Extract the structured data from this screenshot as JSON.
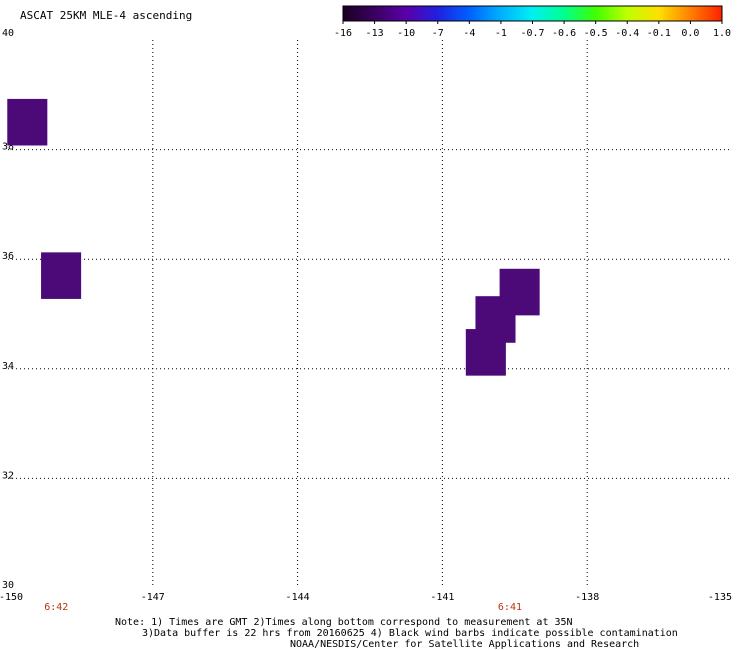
{
  "title": "ASCAT 25KM MLE-4 ascending",
  "colorbar": {
    "ticks": [
      "-16",
      "-13",
      "-10",
      "-7",
      "-4",
      "-1",
      "-0.7",
      "-0.6",
      "-0.5",
      "-0.4",
      "-0.1",
      "0.0",
      "1.0"
    ],
    "colors": [
      "#1a0020",
      "#3a0060",
      "#5a00a8",
      "#2020e0",
      "#0060ff",
      "#00b0ff",
      "#00f0f0",
      "#00ff90",
      "#40ff00",
      "#c0ff00",
      "#ffe000",
      "#ff8000",
      "#ff2000"
    ]
  },
  "map": {
    "x_ticks": [
      "-150",
      "-147",
      "-144",
      "-141",
      "-138",
      "-135"
    ],
    "y_ticks": [
      "30",
      "32",
      "34",
      "36",
      "38",
      "40"
    ],
    "lon_range": [
      -150,
      -135
    ],
    "lat_range": [
      30,
      40
    ],
    "cell_color": "#4b0a78",
    "cells": [
      {
        "lon": -149.6,
        "lat": 38.5
      },
      {
        "lon": -148.9,
        "lat": 35.7
      },
      {
        "lon": -139.4,
        "lat": 35.4
      },
      {
        "lon": -139.9,
        "lat": 34.9
      },
      {
        "lon": -140.1,
        "lat": 34.3
      }
    ]
  },
  "time_labels": [
    {
      "text": "6:42",
      "lon": -149.0
    },
    {
      "text": "6:41",
      "lon": -139.6
    }
  ],
  "notes": [
    "Note: 1) Times are GMT 2)Times along bottom correspond to measurement at 35N",
    "3)Data buffer is 22 hrs from 20160625 4) Black wind barbs indicate possible contamination",
    "NOAA/NESDIS/Center for Satellite Applications and Research"
  ]
}
